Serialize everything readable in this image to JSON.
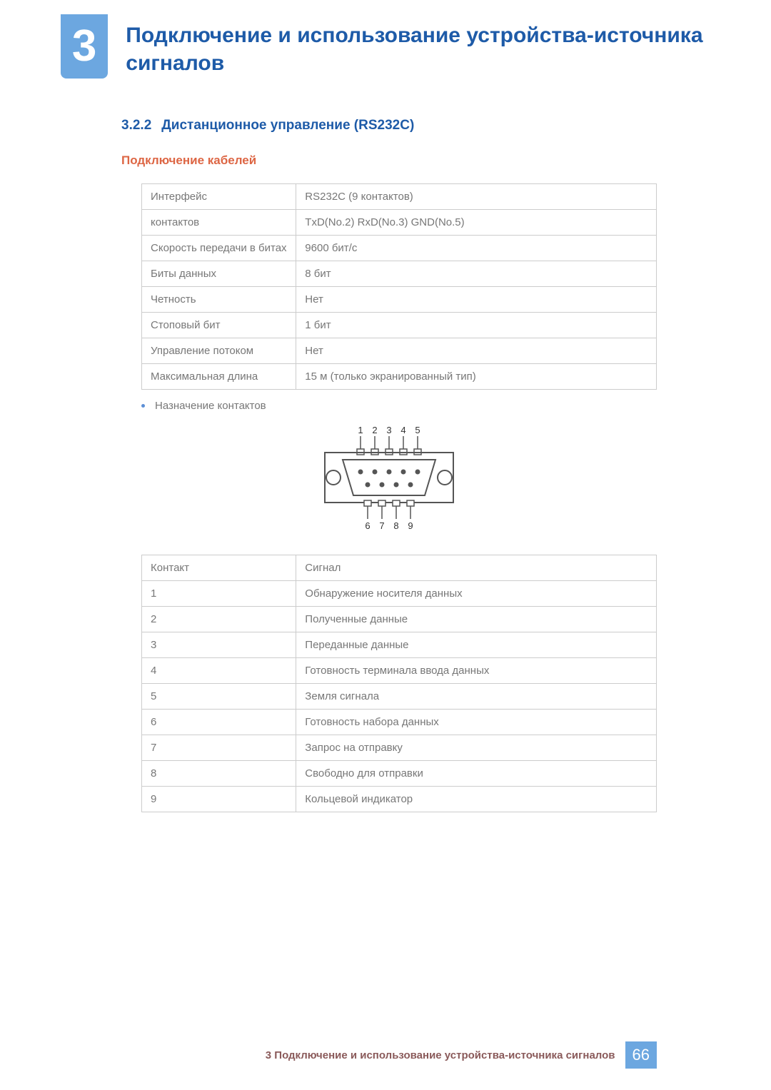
{
  "header": {
    "chapter_number": "3",
    "chapter_title": "Подключение и использование устройства-источника сигналов"
  },
  "section": {
    "number": "3.2.2",
    "title": "Дистанционное управление (RS232C)"
  },
  "subheading": "Подключение кабелей",
  "spec_table": {
    "rows": [
      [
        "Интерфейс",
        "RS232C (9 контактов)"
      ],
      [
        "контактов",
        "TxD(No.2) RxD(No.3) GND(No.5)"
      ],
      [
        "Скорость передачи в битах",
        "9600 бит/с"
      ],
      [
        "Биты данных",
        "8 бит"
      ],
      [
        "Четность",
        "Нет"
      ],
      [
        "Стоповый бит",
        "1 бит"
      ],
      [
        "Управление потоком",
        "Нет"
      ],
      [
        "Максимальная длина",
        "15 м (только экранированный тип)"
      ]
    ]
  },
  "bullet_label": "Назначение контактов",
  "diagram": {
    "top_labels": [
      "1",
      "2",
      "3",
      "4",
      "5"
    ],
    "bottom_labels": [
      "6",
      "7",
      "8",
      "9"
    ],
    "stroke": "#555555",
    "fill": "#555555",
    "label_fontsize": 13
  },
  "pin_table": {
    "header": [
      "Контакт",
      "Сигнал"
    ],
    "rows": [
      [
        "1",
        "Обнаружение носителя данных"
      ],
      [
        "2",
        "Полученные данные"
      ],
      [
        "3",
        "Переданные данные"
      ],
      [
        "4",
        "Готовность терминала ввода данных"
      ],
      [
        "5",
        "Земля сигнала"
      ],
      [
        "6",
        "Готовность набора данных"
      ],
      [
        "7",
        "Запрос на отправку"
      ],
      [
        "8",
        "Свободно для отправки"
      ],
      [
        "9",
        "Кольцевой индикатор"
      ]
    ]
  },
  "footer": {
    "text": "3 Подключение и использование устройства-источника сигналов",
    "page": "66"
  },
  "colors": {
    "heading_blue": "#1e5ba8",
    "badge_blue": "#6ca7e0",
    "sub_orange": "#dd6644",
    "border_grey": "#cccccc",
    "text_grey": "#777777",
    "footer_brown": "#8a5a5a"
  }
}
